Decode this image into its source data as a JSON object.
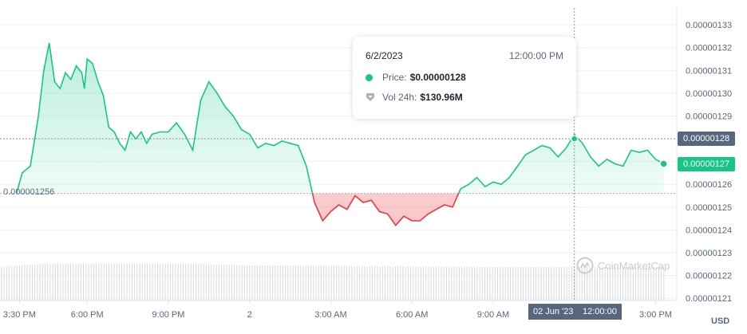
{
  "chart_data": {
    "type": "line",
    "series": [
      {
        "x_hours": [
          0,
          0.2,
          0.5,
          0.8,
          1.0,
          1.2,
          1.4,
          1.6,
          1.8,
          2.0,
          2.2,
          2.4,
          2.5,
          2.6,
          2.8,
          3.0,
          3.2,
          3.4,
          3.6,
          3.8,
          4.0,
          4.2,
          4.4,
          4.6,
          4.8,
          5.0,
          5.3,
          5.6,
          5.9,
          6.2,
          6.5,
          6.8,
          7.1,
          7.4,
          7.7,
          8.0,
          8.3,
          8.6,
          8.9,
          9.2,
          9.5,
          9.8,
          10.1,
          10.4,
          10.7,
          11.0,
          11.3,
          11.6,
          11.9,
          12.2,
          12.5,
          12.8,
          13.1,
          13.4,
          13.7,
          14.0,
          14.3,
          14.6,
          14.9,
          15.2,
          15.5,
          15.8,
          16.1,
          16.4,
          16.7,
          17.0,
          17.3,
          17.6,
          17.9,
          18.2,
          18.5,
          18.8,
          19.1,
          19.4,
          19.7,
          20.0,
          20.3,
          20.6,
          20.9,
          21.2,
          21.5,
          21.8,
          22.1,
          22.4,
          22.7,
          23.0,
          23.3,
          23.6,
          23.9
        ],
        "y": [
          1.25631e-06,
          1.265e-06,
          1.268e-06,
          1.29e-06,
          1.31e-06,
          1.322e-06,
          1.305e-06,
          1.302e-06,
          1.309e-06,
          1.306e-06,
          1.312e-06,
          1.309e-06,
          1.302e-06,
          1.315e-06,
          1.313e-06,
          1.305e-06,
          1.299e-06,
          1.285e-06,
          1.283e-06,
          1.278e-06,
          1.275e-06,
          1.283e-06,
          1.28e-06,
          1.283e-06,
          1.278e-06,
          1.282e-06,
          1.283e-06,
          1.283e-06,
          1.287e-06,
          1.282e-06,
          1.275e-06,
          1.297e-06,
          1.305e-06,
          1.3e-06,
          1.294e-06,
          1.29e-06,
          1.284e-06,
          1.282e-06,
          1.276e-06,
          1.278e-06,
          1.277e-06,
          1.279e-06,
          1.278e-06,
          1.277e-06,
          1.268e-06,
          1.252e-06,
          1.244e-06,
          1.248e-06,
          1.251e-06,
          1.249e-06,
          1.255e-06,
          1.252e-06,
          1.253e-06,
          1.248e-06,
          1.247e-06,
          1.242e-06,
          1.246e-06,
          1.244e-06,
          1.244e-06,
          1.247e-06,
          1.249e-06,
          1.251e-06,
          1.25e-06,
          1.258e-06,
          1.26e-06,
          1.263e-06,
          1.259e-06,
          1.261e-06,
          1.26e-06,
          1.263e-06,
          1.268e-06,
          1.273e-06,
          1.275e-06,
          1.277e-06,
          1.276e-06,
          1.272e-06,
          1.276e-06,
          1.282e-06,
          1.278e-06,
          1.272e-06,
          1.268e-06,
          1.271e-06,
          1.269e-06,
          1.268e-06,
          1.275e-06,
          1.274e-06,
          1.275e-06,
          1.271e-06,
          1.269e-06
        ]
      }
    ],
    "volume": [
      0.85,
      0.87,
      0.88,
      0.9,
      0.91,
      0.92,
      0.93,
      0.93,
      0.93,
      0.93,
      0.93,
      0.93,
      0.93,
      0.93,
      0.93,
      0.93,
      0.93,
      0.93,
      0.93,
      0.93,
      0.93,
      0.93,
      0.93,
      0.93,
      0.93,
      0.93,
      0.92,
      0.91,
      0.9,
      0.9,
      0.89,
      0.89,
      0.88,
      0.88,
      0.88,
      0.88,
      0.88,
      0.88,
      0.88,
      0.88,
      0.87,
      0.87,
      0.87,
      0.87,
      0.87,
      0.87,
      0.86,
      0.86,
      0.86,
      0.86,
      0.86,
      0.86,
      0.86,
      0.86,
      0.85,
      0.85,
      0.85,
      0.85,
      0.85,
      0.85,
      0.85,
      0.85,
      0.85,
      0.85,
      0.84,
      0.84,
      0.84,
      0.84,
      0.84,
      0.84,
      0.84,
      0.84,
      0.84,
      0.84,
      0.84,
      0.84,
      0.84,
      0.84,
      0.84,
      0.84,
      0.84,
      0.84,
      0.84,
      0.84,
      0.84,
      0.84,
      0.84,
      0.84,
      0.84
    ],
    "baseline": 1.256e-06,
    "baseline_label": "0.000001256",
    "ylim": [
      1.209e-06,
      1.336e-06
    ],
    "y_ticks": [
      1.33e-06,
      1.32e-06,
      1.31e-06,
      1.3e-06,
      1.29e-06,
      1.28e-06,
      1.27e-06,
      1.26e-06,
      1.25e-06,
      1.24e-06,
      1.23e-06,
      1.22e-06,
      1.21e-06
    ],
    "y_tick_labels": [
      "0.00000133",
      "0.00000132",
      "0.00000131",
      "0.00000130",
      "0.00000129",
      "0.00000128",
      "0.00000127",
      "0.00000126",
      "0.00000125",
      "0.00000124",
      "0.00000123",
      "0.00000122",
      "0.00000121"
    ],
    "x_ticks": [
      {
        "hours": 0.1,
        "label": "3:30 PM"
      },
      {
        "hours": 2.6,
        "label": "6:00 PM"
      },
      {
        "hours": 5.6,
        "label": "9:00 PM"
      },
      {
        "hours": 8.6,
        "label": "2"
      },
      {
        "hours": 11.6,
        "label": "3:00 AM"
      },
      {
        "hours": 14.6,
        "label": "6:00 AM"
      },
      {
        "hours": 17.6,
        "label": "9:00 AM"
      },
      {
        "hours": 23.6,
        "label": "3:00 PM"
      }
    ],
    "hover_hours": 20.6,
    "hover_price": 1.28e-06,
    "last_price": 1.269e-06,
    "grid": true,
    "colors": {
      "up": "#16c784",
      "down": "#ea3943",
      "axis": "#58667e",
      "grid": "#eff2f5",
      "volume": "#d6dae0"
    }
  },
  "badges": {
    "hover_price": "0.00000128",
    "last_price": "0.00000127",
    "hover_date": "02 Jun '23",
    "hover_time": "12:00:00"
  },
  "tooltip": {
    "date": "6/2/2023",
    "time": "12:00:00 PM",
    "price_label": "Price:",
    "price_value": "$0.00000128",
    "volume_label": "Vol 24h:",
    "volume_value": "$130.96M"
  },
  "watermark": "CoinMarketCap",
  "currency": "USD"
}
